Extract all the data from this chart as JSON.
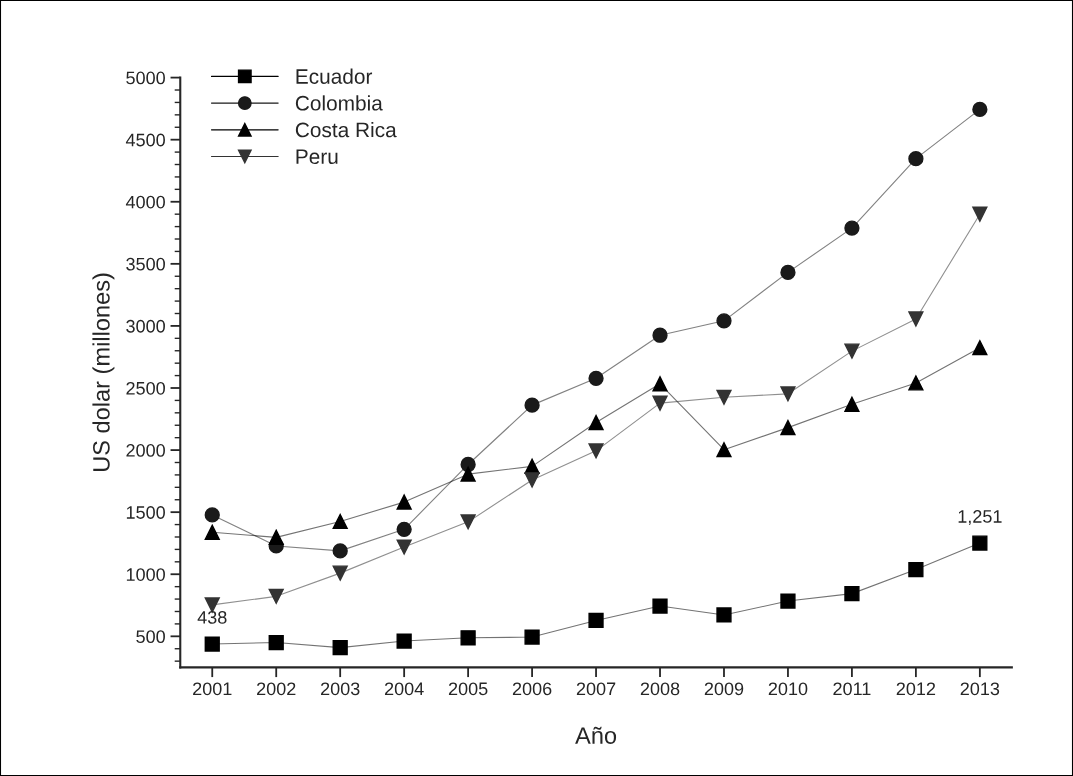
{
  "chart_data": {
    "type": "line",
    "xlabel": "Año",
    "ylabel": "US dolar (millones)",
    "x": [
      2001,
      2002,
      2003,
      2004,
      2005,
      2006,
      2007,
      2008,
      2009,
      2010,
      2011,
      2012,
      2013
    ],
    "series": [
      {
        "name": "Ecuador",
        "color": "#000000",
        "marker": "square",
        "values": [
          438,
          450,
          409,
          462,
          488,
          494,
          628,
          744,
          672,
          784,
          844,
          1038,
          1251
        ]
      },
      {
        "name": "Colombia",
        "color": "#1a1a1a",
        "marker": "circle",
        "values": [
          1478,
          1228,
          1188,
          1362,
          1884,
          2362,
          2578,
          2925,
          3041,
          3431,
          3788,
          4347,
          4744
        ]
      },
      {
        "name": "Costa Rica",
        "color": "#000000",
        "marker": "triangle",
        "values": [
          1338,
          1297,
          1425,
          1581,
          1806,
          1869,
          2222,
          2534,
          2003,
          2181,
          2369,
          2541,
          2825
        ]
      },
      {
        "name": "Peru",
        "color": "#333333",
        "marker": "triangle-down",
        "values": [
          753,
          822,
          1009,
          1219,
          1422,
          1759,
          1994,
          2378,
          2425,
          2453,
          2797,
          3056,
          3900
        ]
      }
    ],
    "annotations": [
      {
        "text": "438",
        "x": 2001,
        "y": 438
      },
      {
        "text": "1,251",
        "x": 2013,
        "y": 1251
      }
    ],
    "xlim": [
      2000.5,
      2013.5
    ],
    "ylim": [
      250,
      5000
    ],
    "xticks": [
      2001,
      2002,
      2003,
      2004,
      2005,
      2006,
      2007,
      2008,
      2009,
      2010,
      2011,
      2012,
      2013
    ],
    "yticks": [
      500,
      1000,
      1500,
      2000,
      2500,
      3000,
      3500,
      4000,
      4500,
      5000
    ],
    "legend": "top left",
    "grid": false,
    "line_style": "solid"
  }
}
